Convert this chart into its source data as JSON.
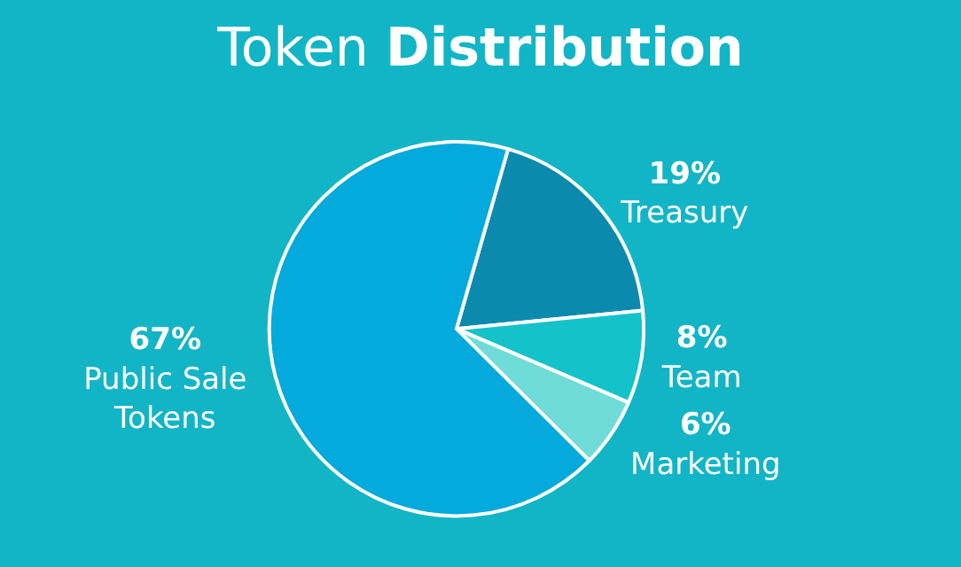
{
  "chart_data": {
    "type": "pie",
    "title": "Token Distribution",
    "categories": [
      "Treasury",
      "Team",
      "Marketing",
      "Public Sale Tokens"
    ],
    "values": [
      19,
      8,
      6,
      67
    ],
    "value_labels": [
      "19%",
      "8%",
      "6%",
      "67%"
    ],
    "colors": [
      "#0b8aad",
      "#14c3c9",
      "#70dcd8",
      "#03aadb"
    ],
    "legend": false
  }
}
